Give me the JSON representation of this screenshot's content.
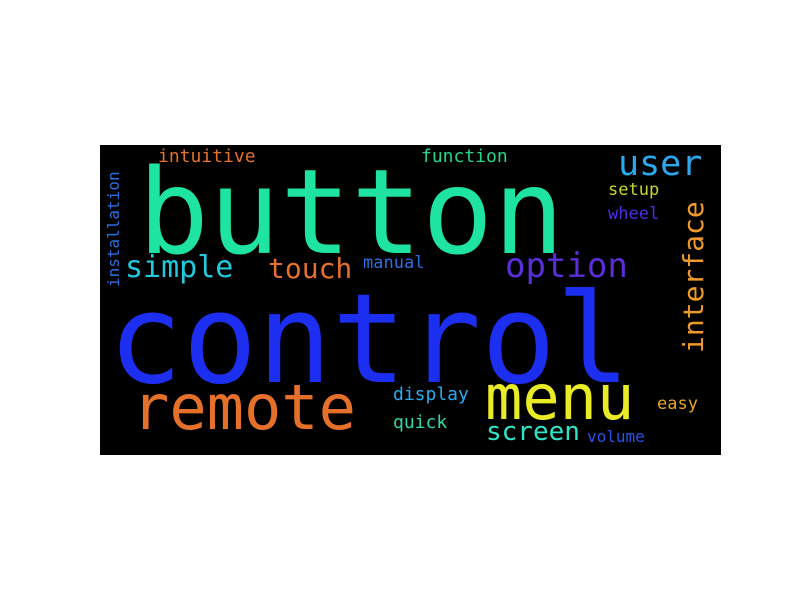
{
  "cloud": {
    "words": [
      {
        "text": "control",
        "color": "#1c2ef0"
      },
      {
        "text": "button",
        "color": "#1ee3a1"
      },
      {
        "text": "remote",
        "color": "#e5702a"
      },
      {
        "text": "menu",
        "color": "#e9ec25"
      },
      {
        "text": "option",
        "color": "#5a2ed8"
      },
      {
        "text": "simple",
        "color": "#22c8dc"
      },
      {
        "text": "user",
        "color": "#2aa9ef"
      },
      {
        "text": "interface",
        "color": "#ef9a2a"
      },
      {
        "text": "touch",
        "color": "#e5702a"
      },
      {
        "text": "screen",
        "color": "#2ee4c8"
      },
      {
        "text": "installation",
        "color": "#2a6fe0"
      },
      {
        "text": "intuitive",
        "color": "#e5702a"
      },
      {
        "text": "function",
        "color": "#25d68a"
      },
      {
        "text": "setup",
        "color": "#c8d630"
      },
      {
        "text": "wheel",
        "color": "#4a2fe6"
      },
      {
        "text": "manual",
        "color": "#2a6fe0"
      },
      {
        "text": "display",
        "color": "#2aa9ef"
      },
      {
        "text": "quick",
        "color": "#2ed8a8"
      },
      {
        "text": "easy",
        "color": "#e9a52a"
      },
      {
        "text": "volume",
        "color": "#2a52e8"
      }
    ]
  }
}
